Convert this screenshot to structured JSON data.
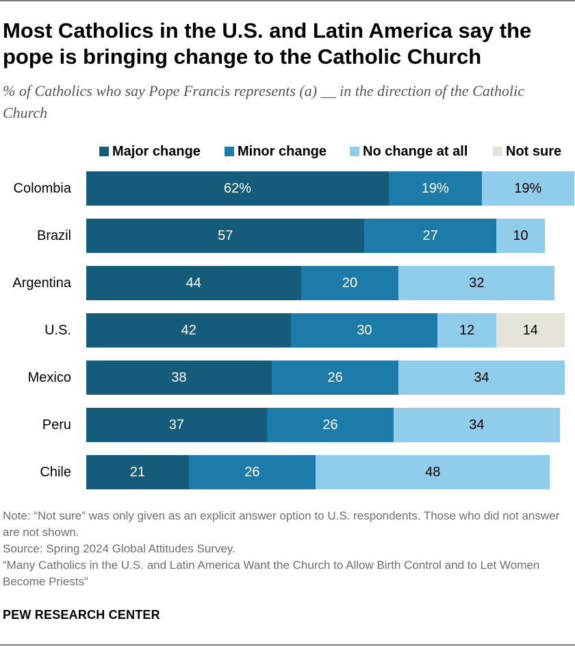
{
  "title": "Most Catholics in the U.S. and Latin America say the pope is bringing change to the Catholic Church",
  "subtitle": "% of Catholics who say Pope Francis represents (a) __ in the direction of the Catholic Church",
  "colors": {
    "major": "#155b7a",
    "minor": "#1c7ba9",
    "none": "#8fcdea",
    "notsure": "#e6e3db"
  },
  "chart_data": {
    "type": "bar",
    "orientation": "horizontal",
    "stacked": true,
    "categories": [
      "Colombia",
      "Brazil",
      "Argentina",
      "U.S.",
      "Mexico",
      "Peru",
      "Chile"
    ],
    "series": [
      {
        "name": "Major change",
        "key": "major",
        "values": [
          62,
          57,
          44,
          42,
          38,
          37,
          21
        ],
        "labels": [
          "62%",
          "57",
          "44",
          "42",
          "38",
          "37",
          "21"
        ]
      },
      {
        "name": "Minor change",
        "key": "minor",
        "values": [
          19,
          27,
          20,
          30,
          26,
          26,
          26
        ],
        "labels": [
          "19%",
          "27",
          "20",
          "30",
          "26",
          "26",
          "26"
        ]
      },
      {
        "name": "No change at all",
        "key": "none",
        "values": [
          19,
          10,
          32,
          12,
          34,
          34,
          48
        ],
        "labels": [
          "19%",
          "10",
          "32",
          "12",
          "34",
          "34",
          "48"
        ]
      },
      {
        "name": "Not sure",
        "key": "notsure",
        "values": [
          0,
          0,
          0,
          14,
          0,
          0,
          0
        ],
        "labels": [
          "",
          "",
          "",
          "14",
          "",
          "",
          ""
        ]
      }
    ],
    "xlim": [
      0,
      100
    ],
    "legend_position": "top"
  },
  "notes": [
    "Note: “Not sure” was only given as an explicit answer option to U.S. respondents. Those who did not answer are not shown.",
    "Source: Spring 2024 Global Attitudes Survey.",
    "“Many Catholics in the U.S. and Latin America Want the Church to Allow Birth Control and to Let Women Become Priests”"
  ],
  "brand": "PEW RESEARCH CENTER"
}
